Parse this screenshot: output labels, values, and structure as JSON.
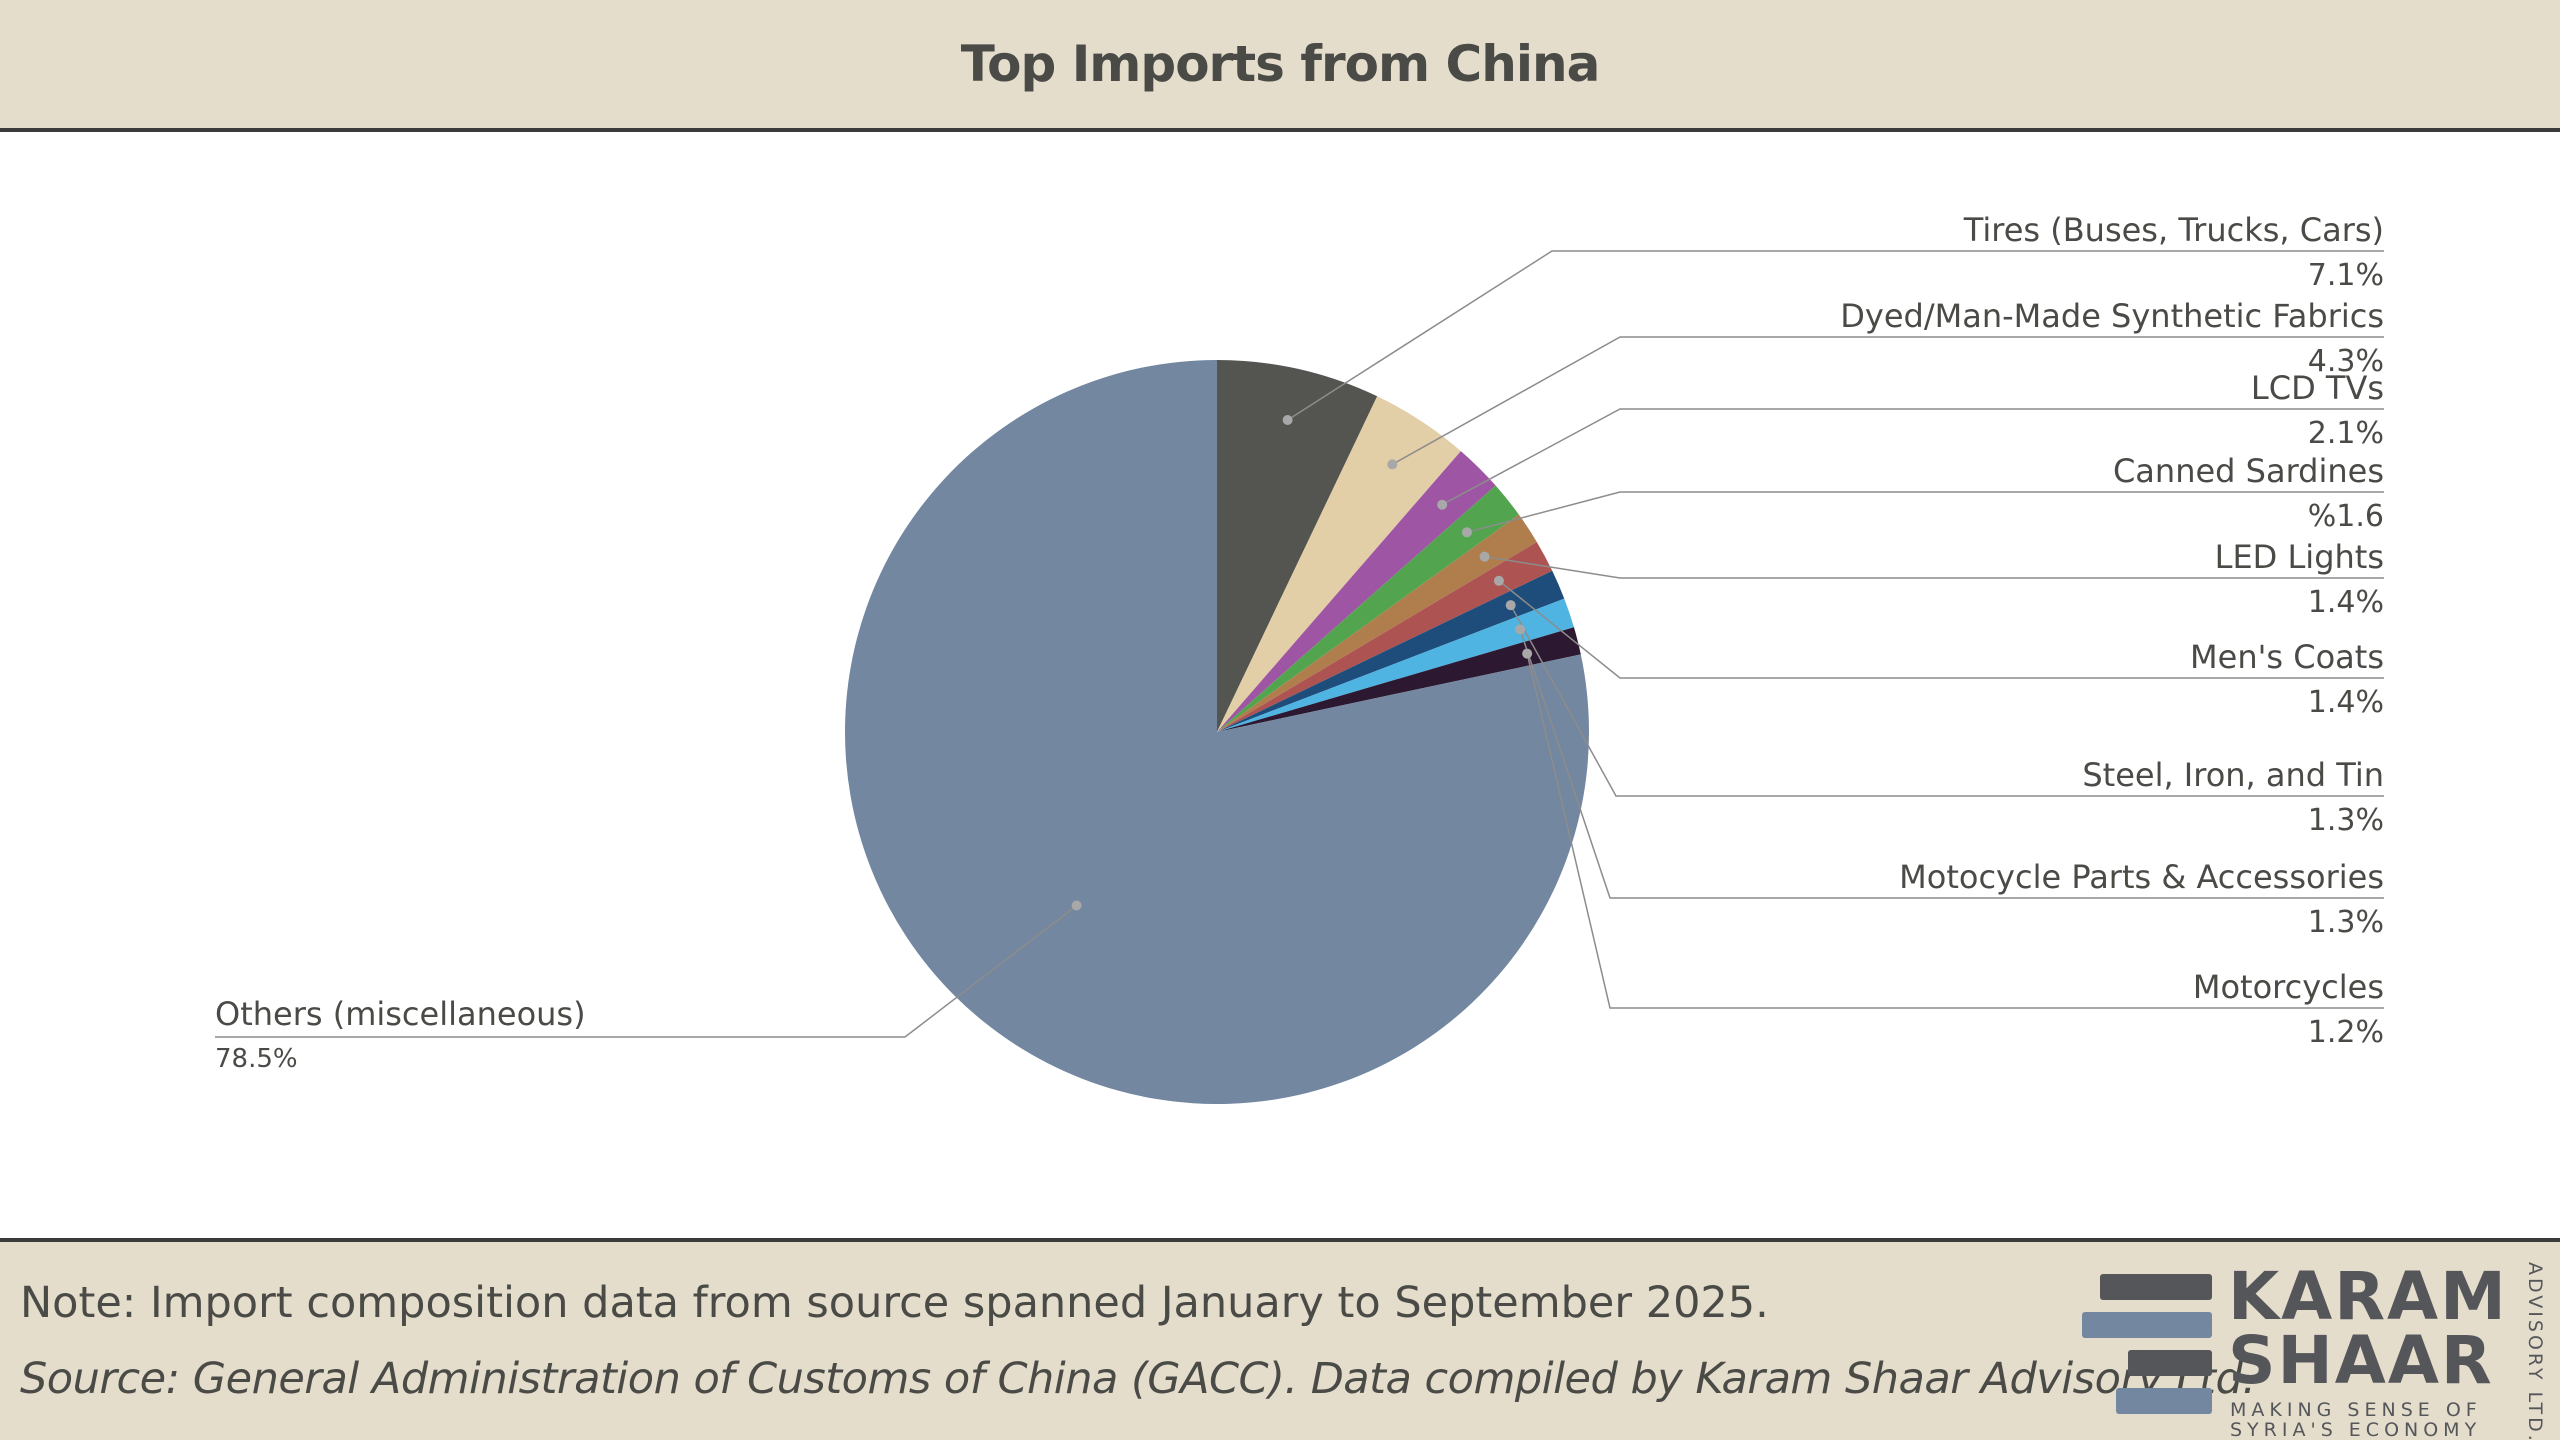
{
  "title": "Top Imports from China",
  "chart_data": {
    "type": "pie",
    "slices": [
      {
        "label": "Tires (Buses, Trucks, Cars)",
        "value": 7.1,
        "display": "7.1%",
        "color": "#545551"
      },
      {
        "label": "Dyed/Man-Made Synthetic Fabrics",
        "value": 4.3,
        "display": "4.3%",
        "color": "#e3cfa7"
      },
      {
        "label": "LCD TVs",
        "value": 2.1,
        "display": "2.1%",
        "color": "#9e55a3"
      },
      {
        "label": "Canned Sardines",
        "value": 1.6,
        "display": "%1.6",
        "color": "#52a54e"
      },
      {
        "label": "LED Lights",
        "value": 1.4,
        "display": "1.4%",
        "color": "#b07d4d"
      },
      {
        "label": "Men's Coats",
        "value": 1.4,
        "display": "1.4%",
        "color": "#ad5453"
      },
      {
        "label": "Steel, Iron, and Tin",
        "value": 1.3,
        "display": "1.3%",
        "color": "#1e4d7b"
      },
      {
        "label": "Motocycle Parts & Accessories",
        "value": 1.3,
        "display": "1.3%",
        "color": "#4fb4e2"
      },
      {
        "label": "Motorcycles",
        "value": 1.2,
        "display": "1.2%",
        "color": "#2c1831"
      },
      {
        "label": "Others (miscellaneous)",
        "value": 78.5,
        "display": "78.5%",
        "color": "#7487a0"
      }
    ]
  },
  "footer": {
    "note": "Note: Import composition data from source spanned January to September 2025.",
    "source": "Source: General Administration of Customs of China (GACC). Data compiled by Karam Shaar Advisory Ltd."
  },
  "logo": {
    "line1": "KARAM",
    "line2": "SHAAR",
    "tag1": "MAKING SENSE OF",
    "tag2": "SYRIA'S ECONOMY",
    "vertical": "ADVISORY LTD.",
    "bar_dark": "#55565a",
    "bar_blue": "#7487a0"
  }
}
